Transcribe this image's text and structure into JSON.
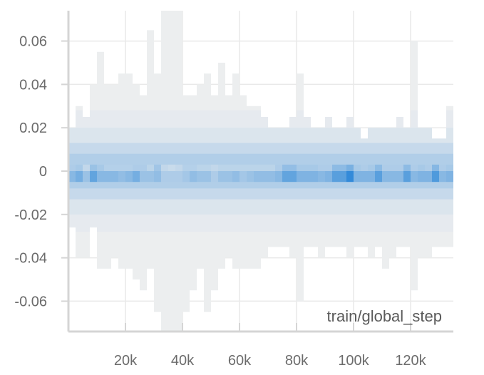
{
  "chart_data": {
    "type": "heatmap",
    "title": "",
    "xlabel": "train/global_step",
    "ylabel": "",
    "x_ticks": [
      {
        "value": 20000,
        "label": "20k"
      },
      {
        "value": 40000,
        "label": "40k"
      },
      {
        "value": 60000,
        "label": "60k"
      },
      {
        "value": 80000,
        "label": "80k"
      },
      {
        "value": 100000,
        "label": "100k"
      },
      {
        "value": 120000,
        "label": "120k"
      }
    ],
    "y_ticks": [
      {
        "value": 0.06,
        "label": "0.06"
      },
      {
        "value": 0.04,
        "label": "0.04"
      },
      {
        "value": 0.02,
        "label": "0.02"
      },
      {
        "value": 0,
        "label": "0"
      },
      {
        "value": -0.02,
        "label": "-0.02"
      },
      {
        "value": -0.04,
        "label": "-0.04"
      },
      {
        "value": -0.06,
        "label": "-0.06"
      }
    ],
    "xlim": [
      0,
      135000
    ],
    "ylim": [
      -0.074,
      0.074
    ],
    "grid": true,
    "colors": {
      "low": "#f0f0f0",
      "high": "#1e7fd6",
      "grid": "#e9e9e9",
      "axis": "#d5d5d5"
    },
    "bin_width": 2500,
    "step_starts": [
      0,
      2500,
      5000,
      7500,
      10000,
      12500,
      15000,
      17500,
      20000,
      22500,
      25000,
      27500,
      30000,
      32500,
      35000,
      37500,
      40000,
      42500,
      45000,
      47500,
      50000,
      52500,
      55000,
      57500,
      60000,
      62500,
      65000,
      67500,
      70000,
      72500,
      75000,
      77500,
      80000,
      82500,
      85000,
      87500,
      90000,
      92500,
      95000,
      97500,
      100000,
      102500,
      105000,
      107500,
      110000,
      112500,
      115000,
      117500,
      120000,
      122500,
      125000,
      127500,
      130000,
      132500
    ],
    "extent_min": [
      -0.026,
      -0.04,
      -0.04,
      -0.026,
      -0.045,
      -0.045,
      -0.04,
      -0.045,
      -0.045,
      -0.05,
      -0.055,
      -0.045,
      -0.065,
      -0.074,
      -0.074,
      -0.074,
      -0.065,
      -0.055,
      -0.045,
      -0.065,
      -0.055,
      -0.045,
      -0.04,
      -0.045,
      -0.045,
      -0.045,
      -0.045,
      -0.04,
      -0.035,
      -0.035,
      -0.035,
      -0.04,
      -0.06,
      -0.035,
      -0.035,
      -0.04,
      -0.035,
      -0.035,
      -0.035,
      -0.04,
      -0.035,
      -0.035,
      -0.04,
      -0.035,
      -0.045,
      -0.04,
      -0.035,
      -0.035,
      -0.055,
      -0.04,
      -0.04,
      -0.035,
      -0.035,
      -0.035
    ],
    "extent_max": [
      0.02,
      0.03,
      0.025,
      0.04,
      0.055,
      0.04,
      0.04,
      0.045,
      0.045,
      0.04,
      0.035,
      0.065,
      0.045,
      0.074,
      0.074,
      0.074,
      0.035,
      0.035,
      0.04,
      0.045,
      0.035,
      0.05,
      0.035,
      0.045,
      0.035,
      0.03,
      0.03,
      0.025,
      0.02,
      0.02,
      0.02,
      0.025,
      0.045,
      0.025,
      0.02,
      0.02,
      0.025,
      0.02,
      0.02,
      0.025,
      0.02,
      0.015,
      0.02,
      0.02,
      0.02,
      0.02,
      0.025,
      0.02,
      0.06,
      0.02,
      0.02,
      0.015,
      0.015,
      0.03
    ],
    "y_bin_centers": [
      -0.06,
      -0.05,
      -0.04,
      -0.03,
      -0.02,
      -0.01,
      -0.005,
      0,
      0.005,
      0.01,
      0.02,
      0.03,
      0.04,
      0.05,
      0.06
    ],
    "intensity_rows": [
      [
        0.5,
        0.55,
        0.35,
        0.65,
        0.55,
        0.45,
        0.45,
        0.45,
        0.45,
        0.5,
        0.5,
        0.4,
        0.6,
        0.35,
        0.3,
        0.35,
        0.45,
        0.45,
        0.4,
        0.4,
        0.35,
        0.4,
        0.4,
        0.4,
        0.4,
        0.4,
        0.4,
        0.4,
        0.4,
        0.5,
        0.7,
        0.7,
        0.55,
        0.55,
        0.55,
        0.5,
        0.5,
        0.75,
        0.75,
        0.9,
        0.55,
        0.5,
        0.55,
        0.75,
        0.5,
        0.5,
        0.5,
        0.75,
        0.5,
        0.55,
        0.5,
        0.8,
        0.5,
        0.55
      ],
      [
        0.55,
        0.65,
        0.45,
        0.75,
        0.55,
        0.55,
        0.55,
        0.5,
        0.55,
        0.65,
        0.45,
        0.45,
        0.5,
        0.35,
        0.35,
        0.35,
        0.4,
        0.5,
        0.45,
        0.45,
        0.35,
        0.45,
        0.45,
        0.5,
        0.4,
        0.45,
        0.5,
        0.5,
        0.5,
        0.55,
        0.75,
        0.75,
        0.6,
        0.6,
        0.6,
        0.55,
        0.6,
        0.8,
        0.8,
        1.0,
        0.6,
        0.6,
        0.6,
        0.8,
        0.55,
        0.55,
        0.55,
        0.8,
        0.55,
        0.6,
        0.6,
        0.85,
        0.55,
        0.6
      ]
    ],
    "legend": "none"
  }
}
